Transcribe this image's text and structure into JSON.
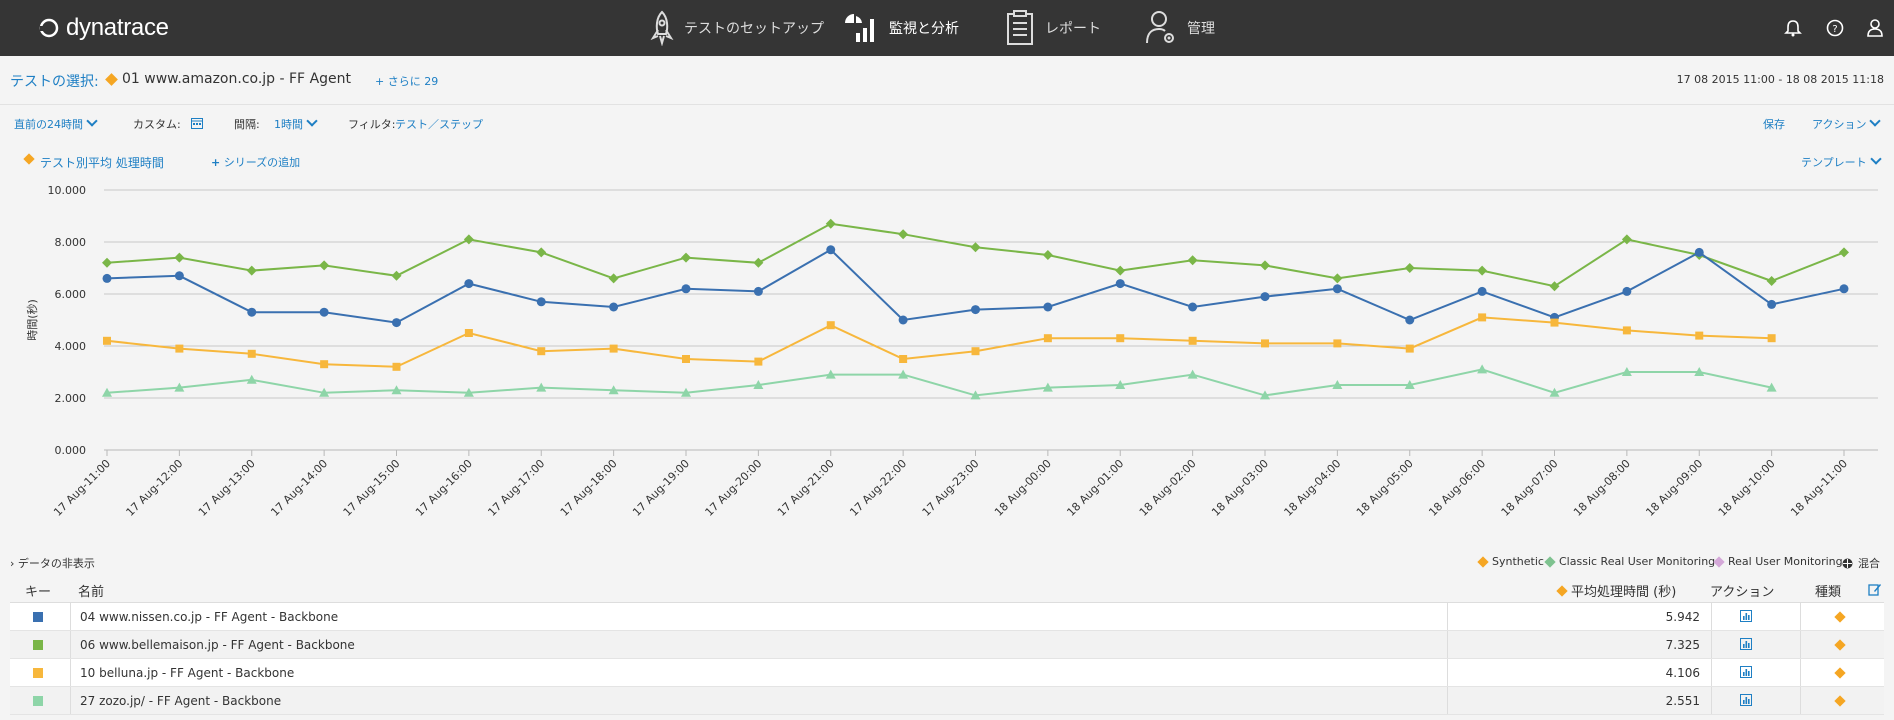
{
  "header": {
    "logo": "dynatrace",
    "nav": [
      {
        "label": "テストのセットアップ",
        "icon": "rocket-icon"
      },
      {
        "label": "監視と分析",
        "icon": "bar-chart-icon",
        "active": true
      },
      {
        "label": "レポート",
        "icon": "clipboard-icon"
      },
      {
        "label": "管理",
        "icon": "user-gear-icon"
      }
    ],
    "icons": [
      "bell-icon",
      "help-icon",
      "user-icon"
    ]
  },
  "test_select": {
    "label": "テストの選択:",
    "value": "01 www.amazon.co.jp - FF Agent",
    "more": "+ さらに 29",
    "date_range": "17 08 2015 11:00 - 18 08 2015 11:18"
  },
  "filters": {
    "period": "直前の24時間",
    "custom_label": "カスタム:",
    "interval_label": "間隔:",
    "interval_value": "1時間",
    "filter_label": "フィルタ:",
    "filter_value": "テスト／ステップ",
    "save": "保存",
    "action": "アクション"
  },
  "series_bar": {
    "metric": "テスト別平均 処理時間",
    "add_series": "シリーズの追加",
    "template": "テンプレート"
  },
  "chart_data": {
    "type": "line",
    "ylabel": "時間(秒)",
    "ylim": [
      0,
      10
    ],
    "yticks": [
      "0.000",
      "2.000",
      "4.000",
      "6.000",
      "8.000",
      "10.000"
    ],
    "x": [
      "17 Aug-11:00",
      "17 Aug-12:00",
      "17 Aug-13:00",
      "17 Aug-14:00",
      "17 Aug-15:00",
      "17 Aug-16:00",
      "17 Aug-17:00",
      "17 Aug-18:00",
      "17 Aug-19:00",
      "17 Aug-20:00",
      "17 Aug-21:00",
      "17 Aug-22:00",
      "17 Aug-23:00",
      "18 Aug-00:00",
      "18 Aug-01:00",
      "18 Aug-02:00",
      "18 Aug-03:00",
      "18 Aug-04:00",
      "18 Aug-05:00",
      "18 Aug-06:00",
      "18 Aug-07:00",
      "18 Aug-08:00",
      "18 Aug-09:00",
      "18 Aug-10:00",
      "18 Aug-11:00"
    ],
    "series": [
      {
        "color": "#7ab648",
        "marker": "diamond",
        "values": [
          7.2,
          7.4,
          6.9,
          7.1,
          6.7,
          8.1,
          7.6,
          6.6,
          7.4,
          7.2,
          8.7,
          8.3,
          7.8,
          7.5,
          6.9,
          7.3,
          7.1,
          6.6,
          7.0,
          6.9,
          6.3,
          8.1,
          7.5,
          6.5,
          7.6
        ]
      },
      {
        "color": "#3a70b0",
        "marker": "circle",
        "values": [
          6.6,
          6.7,
          5.3,
          5.3,
          4.9,
          6.4,
          5.7,
          5.5,
          6.2,
          6.1,
          7.7,
          5.0,
          5.4,
          5.5,
          6.4,
          5.5,
          5.9,
          6.2,
          5.0,
          6.1,
          5.1,
          6.1,
          7.6,
          5.6,
          6.2
        ]
      },
      {
        "color": "#f7b73c",
        "marker": "square",
        "values": [
          4.2,
          3.9,
          3.7,
          3.3,
          3.2,
          4.5,
          3.8,
          3.9,
          3.5,
          3.4,
          4.8,
          3.5,
          3.8,
          4.3,
          4.3,
          4.2,
          4.1,
          4.1,
          3.9,
          5.1,
          4.9,
          4.6,
          4.4,
          4.3,
          null
        ]
      },
      {
        "color": "#8ed5a8",
        "marker": "triangle",
        "values": [
          2.2,
          2.4,
          2.7,
          2.2,
          2.3,
          2.2,
          2.4,
          2.3,
          2.2,
          2.5,
          2.9,
          2.9,
          2.1,
          2.4,
          2.5,
          2.9,
          2.1,
          2.5,
          2.5,
          3.1,
          2.2,
          3.0,
          3.0,
          2.4,
          null
        ]
      }
    ]
  },
  "data_toggle": "› データの非表示",
  "legend": [
    {
      "label": "Synthetic",
      "color": "#f5a623"
    },
    {
      "label": "Classic Real User Monitoring",
      "color": "#7ec28f"
    },
    {
      "label": "Real User Monitoring",
      "color": "#d4a8d8"
    },
    {
      "label": "混合",
      "color": "#333333"
    }
  ],
  "table": {
    "headers": {
      "key": "キー",
      "name": "名前",
      "avg": "平均処理時間 (秒)",
      "action": "アクション",
      "kind": "種類"
    },
    "rows": [
      {
        "color": "#3a70b0",
        "name": "04 www.nissen.co.jp - FF Agent - Backbone",
        "value": "5.942"
      },
      {
        "color": "#7ab648",
        "name": "06 www.bellemaison.jp - FF Agent - Backbone",
        "value": "7.325"
      },
      {
        "color": "#f7b73c",
        "name": "10 belluna.jp - FF Agent - Backbone",
        "value": "4.106"
      },
      {
        "color": "#8ed5a8",
        "name": "27 zozo.jp/ - FF Agent - Backbone",
        "value": "2.551"
      }
    ]
  }
}
